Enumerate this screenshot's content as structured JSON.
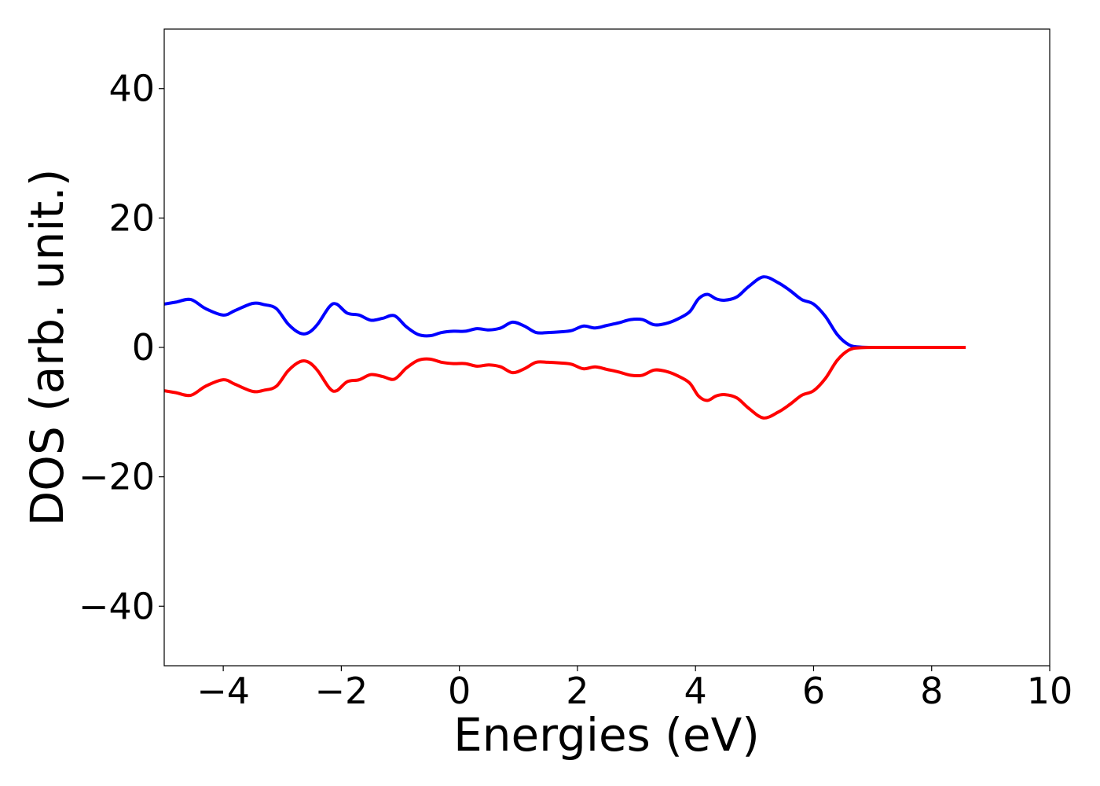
{
  "chart_data": {
    "type": "line",
    "title": "",
    "xlabel": "Energies (eV)",
    "ylabel": "DOS (arb. unit.)",
    "xlim": [
      -5,
      10
    ],
    "ylim": [
      -49.2,
      49.2
    ],
    "xticks": [
      -4,
      -2,
      0,
      2,
      4,
      6,
      8,
      10
    ],
    "xtick_labels": [
      "−4",
      "−2",
      "0",
      "2",
      "4",
      "6",
      "8",
      "10"
    ],
    "yticks": [
      40,
      20,
      0,
      -20,
      -40
    ],
    "ytick_labels": [
      "40",
      "20",
      "0",
      "−20",
      "−40"
    ],
    "grid": false,
    "legend": "none",
    "series": [
      {
        "color": "#0000ff",
        "x": [
          -5.0,
          -4.8,
          -4.55,
          -4.3,
          -4.0,
          -3.8,
          -3.5,
          -3.3,
          -3.1,
          -2.9,
          -2.7,
          -2.55,
          -2.4,
          -2.2,
          -2.08,
          -1.9,
          -1.7,
          -1.5,
          -1.3,
          -1.1,
          -0.9,
          -0.7,
          -0.5,
          -0.3,
          -0.1,
          0.1,
          0.3,
          0.5,
          0.7,
          0.9,
          1.1,
          1.3,
          1.5,
          1.7,
          1.9,
          2.1,
          2.3,
          2.5,
          2.7,
          2.9,
          3.1,
          3.3,
          3.5,
          3.7,
          3.9,
          4.05,
          4.2,
          4.35,
          4.5,
          4.7,
          4.9,
          5.15,
          5.4,
          5.6,
          5.8,
          6.0,
          6.2,
          6.4,
          6.6,
          6.8,
          7.2,
          7.8,
          8.55
        ],
        "y": [
          6.7,
          7.0,
          7.4,
          6.0,
          5.0,
          5.7,
          6.8,
          6.6,
          6.0,
          3.6,
          2.2,
          2.3,
          3.6,
          6.3,
          6.7,
          5.3,
          5.0,
          4.2,
          4.5,
          4.9,
          3.2,
          2.0,
          1.8,
          2.3,
          2.5,
          2.5,
          2.9,
          2.7,
          3.0,
          3.9,
          3.3,
          2.3,
          2.3,
          2.4,
          2.6,
          3.3,
          3.0,
          3.4,
          3.8,
          4.3,
          4.3,
          3.5,
          3.7,
          4.4,
          5.5,
          7.5,
          8.2,
          7.5,
          7.3,
          7.8,
          9.4,
          10.9,
          10.0,
          8.8,
          7.4,
          6.7,
          4.8,
          2.0,
          0.4,
          0.05,
          0.0,
          0.0,
          0.0
        ]
      },
      {
        "color": "#ff0000",
        "x": [
          -5.0,
          -4.8,
          -4.55,
          -4.3,
          -4.0,
          -3.8,
          -3.5,
          -3.3,
          -3.1,
          -2.9,
          -2.7,
          -2.55,
          -2.4,
          -2.2,
          -2.08,
          -1.9,
          -1.7,
          -1.5,
          -1.3,
          -1.1,
          -0.9,
          -0.7,
          -0.5,
          -0.3,
          -0.1,
          0.1,
          0.3,
          0.5,
          0.7,
          0.9,
          1.1,
          1.3,
          1.5,
          1.7,
          1.9,
          2.1,
          2.3,
          2.5,
          2.7,
          2.9,
          3.1,
          3.3,
          3.5,
          3.7,
          3.9,
          4.05,
          4.2,
          4.35,
          4.5,
          4.7,
          4.9,
          5.15,
          5.4,
          5.6,
          5.8,
          6.0,
          6.2,
          6.4,
          6.6,
          6.8,
          7.2,
          7.8,
          8.55
        ],
        "y": [
          -6.7,
          -7.0,
          -7.4,
          -6.0,
          -5.0,
          -5.7,
          -6.8,
          -6.6,
          -6.0,
          -3.6,
          -2.2,
          -2.3,
          -3.6,
          -6.3,
          -6.7,
          -5.3,
          -5.0,
          -4.2,
          -4.5,
          -4.9,
          -3.2,
          -2.0,
          -1.8,
          -2.3,
          -2.5,
          -2.5,
          -2.9,
          -2.7,
          -3.0,
          -3.9,
          -3.3,
          -2.3,
          -2.3,
          -2.4,
          -2.6,
          -3.3,
          -3.0,
          -3.4,
          -3.8,
          -4.3,
          -4.3,
          -3.5,
          -3.7,
          -4.4,
          -5.5,
          -7.5,
          -8.2,
          -7.5,
          -7.3,
          -7.8,
          -9.4,
          -10.9,
          -10.0,
          -8.8,
          -7.4,
          -6.7,
          -4.8,
          -2.0,
          -0.4,
          -0.05,
          0.0,
          0.0,
          0.0
        ]
      }
    ]
  }
}
